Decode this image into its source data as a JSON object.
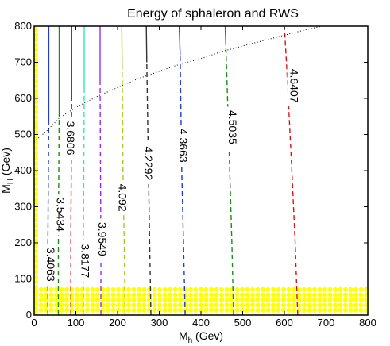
{
  "chart_data": {
    "type": "line",
    "title": "Energy of sphaleron and RWS",
    "xlabel": {
      "main": "M",
      "sub": "h",
      "rest": " (Gev)"
    },
    "ylabel": {
      "main": "M",
      "sub": "H",
      "rest": " (Gev)"
    },
    "xlim": [
      0,
      800
    ],
    "ylim": [
      0,
      800
    ],
    "xticks": [
      0,
      100,
      200,
      300,
      400,
      500,
      600,
      700,
      800
    ],
    "yticks": [
      0,
      100,
      200,
      300,
      400,
      500,
      600,
      700,
      800
    ],
    "grid": false,
    "contours": [
      {
        "label": "3.4063",
        "color": "#1f3bd6",
        "points": [
          [
            33,
            0
          ],
          [
            33,
            200
          ],
          [
            34,
            400
          ],
          [
            35,
            530
          ],
          [
            35,
            800
          ]
        ],
        "solid_above_mH": 530,
        "label_at": [
          40,
          140
        ]
      },
      {
        "label": "3.5434",
        "color": "#1a8c1a",
        "points": [
          [
            58,
            0
          ],
          [
            58,
            200
          ],
          [
            59,
            400
          ],
          [
            60,
            560
          ],
          [
            60,
            800
          ]
        ],
        "solid_above_mH": 560,
        "label_at": [
          64,
          278
        ]
      },
      {
        "label": "3.6806",
        "color": "#e01010",
        "points": [
          [
            88,
            0
          ],
          [
            88,
            200
          ],
          [
            89,
            400
          ],
          [
            90,
            600
          ],
          [
            90,
            800
          ]
        ],
        "solid_above_mH": 600,
        "label_at": [
          88,
          490
        ]
      },
      {
        "label": "3.8177",
        "color": "#2ee8b0",
        "points": [
          [
            118,
            0
          ],
          [
            118,
            200
          ],
          [
            119,
            400
          ],
          [
            120,
            620
          ],
          [
            120,
            800
          ]
        ],
        "solid_above_mH": 620,
        "label_at": [
          123,
          150
        ]
      },
      {
        "label": "3.9549",
        "color": "#9a2cf0",
        "points": [
          [
            160,
            0
          ],
          [
            160,
            200
          ],
          [
            159,
            400
          ],
          [
            158,
            640
          ],
          [
            158,
            800
          ]
        ],
        "solid_above_mH": 640,
        "label_at": [
          164,
          210
        ]
      },
      {
        "label": "4.092",
        "color": "#a8c81a",
        "points": [
          [
            218,
            0
          ],
          [
            216,
            200
          ],
          [
            213,
            400
          ],
          [
            211,
            680
          ],
          [
            210,
            800
          ]
        ],
        "solid_above_mH": 680,
        "label_at": [
          212,
          325
        ]
      },
      {
        "label": "4.2292",
        "color": "#333333",
        "points": [
          [
            280,
            0
          ],
          [
            277,
            200
          ],
          [
            274,
            400
          ],
          [
            270,
            700
          ],
          [
            269,
            800
          ]
        ],
        "solid_above_mH": 700,
        "label_at": [
          274,
          420
        ]
      },
      {
        "label": "4.3663",
        "color": "#1f3bd6",
        "points": [
          [
            362,
            0
          ],
          [
            358,
            200
          ],
          [
            354,
            400
          ],
          [
            350,
            720
          ],
          [
            348,
            800
          ]
        ],
        "solid_above_mH": 720,
        "label_at": [
          358,
          470
        ]
      },
      {
        "label": "4.5035",
        "color": "#1a8c1a",
        "points": [
          [
            478,
            0
          ],
          [
            474,
            200
          ],
          [
            469,
            400
          ],
          [
            462,
            660
          ],
          [
            458,
            800
          ]
        ],
        "solid_above_mH": 760,
        "label_at": [
          476,
          520
        ]
      },
      {
        "label": "4.6407",
        "color": "#e01010",
        "points": [
          [
            632,
            0
          ],
          [
            626,
            200
          ],
          [
            618,
            400
          ],
          [
            606,
            680
          ],
          [
            600,
            800
          ]
        ],
        "solid_above_mH": 800,
        "label_at": [
          624,
          635
        ]
      }
    ],
    "boundary": {
      "color": "#000000",
      "style": "dotted",
      "points": [
        [
          0,
          480
        ],
        [
          30,
          510
        ],
        [
          60,
          545
        ],
        [
          100,
          575
        ],
        [
          150,
          605
        ],
        [
          200,
          630
        ],
        [
          250,
          655
        ],
        [
          300,
          675
        ],
        [
          350,
          695
        ],
        [
          400,
          710
        ],
        [
          450,
          730
        ],
        [
          500,
          745
        ],
        [
          550,
          760
        ],
        [
          600,
          775
        ],
        [
          650,
          790
        ],
        [
          690,
          800
        ]
      ]
    },
    "marker_region": {
      "color": "#ffff00",
      "description": "dense yellow dots",
      "ymax": 75,
      "xmax": 800
    }
  }
}
